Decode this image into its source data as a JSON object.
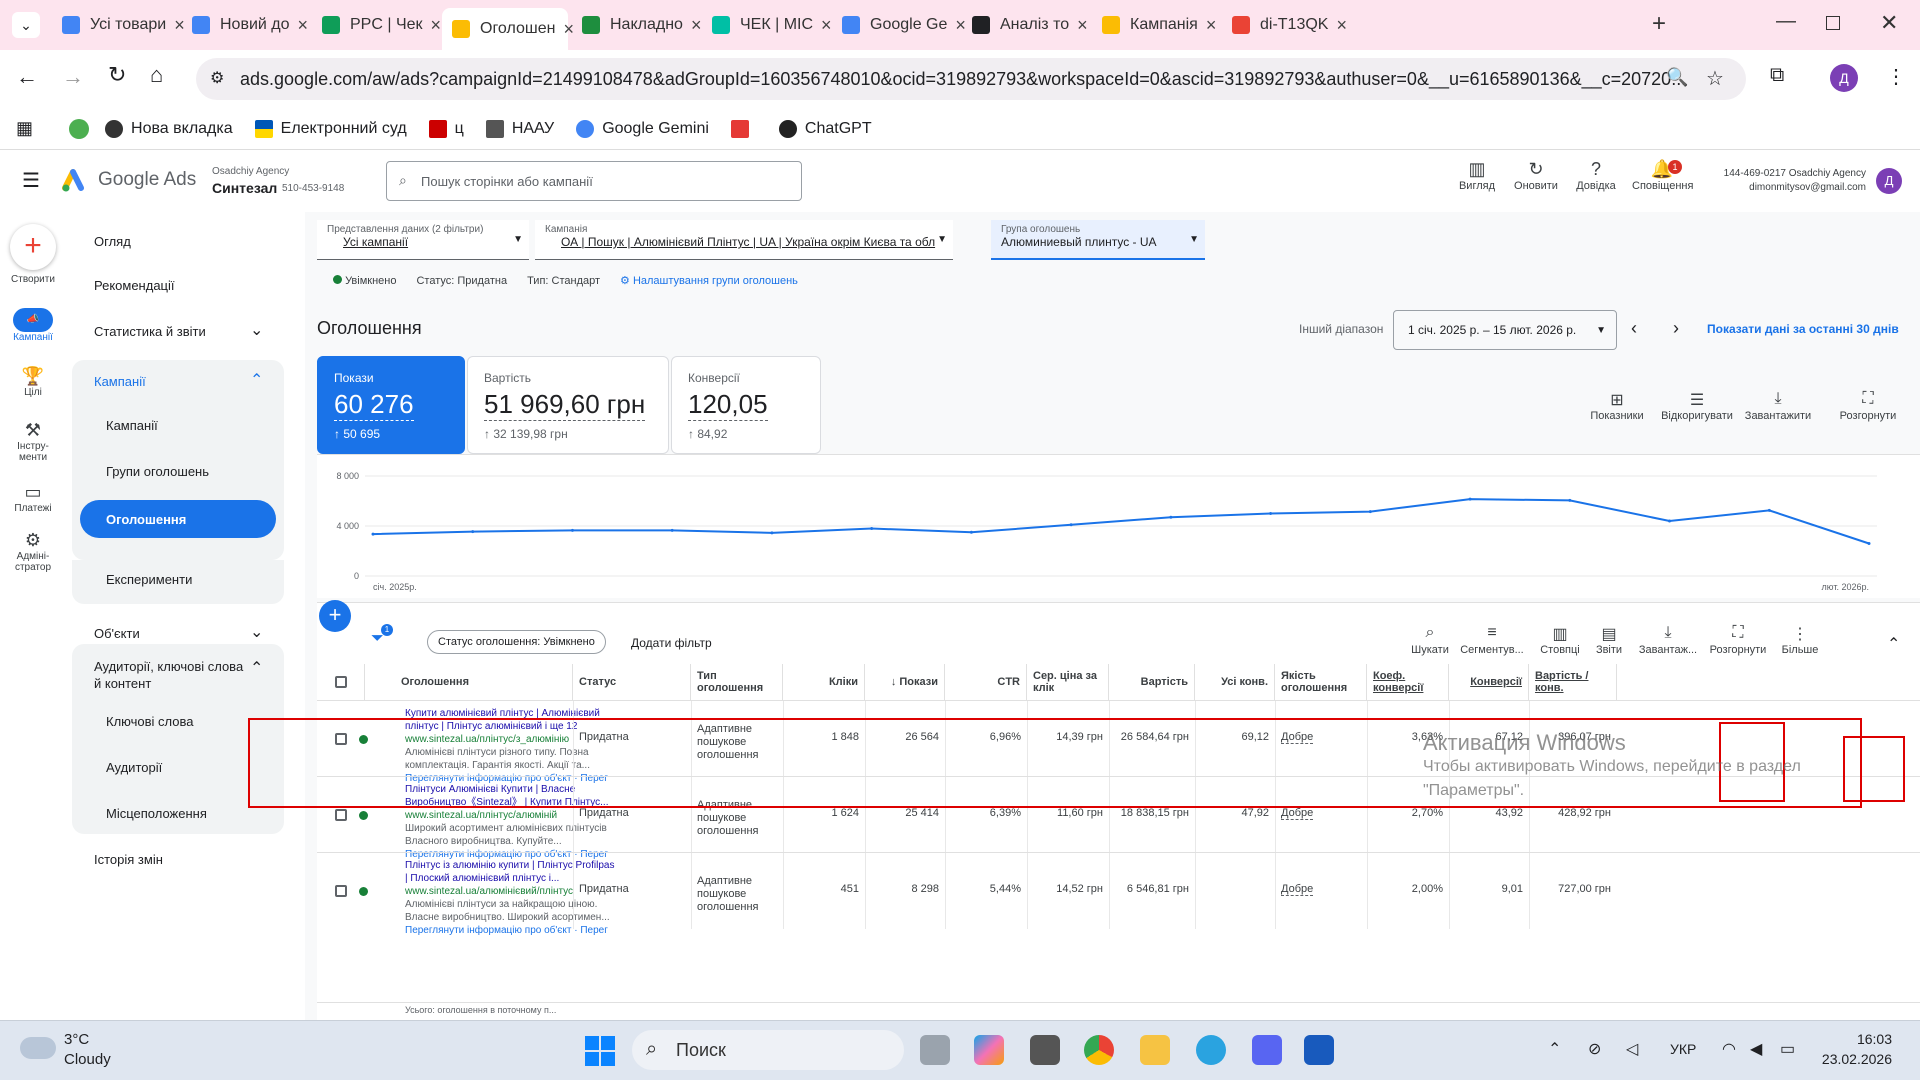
{
  "browser": {
    "tabs": [
      {
        "label": "Усі товари",
        "color": "#4285f4"
      },
      {
        "label": "Новий до",
        "color": "#4285f4"
      },
      {
        "label": "PPC | Чек",
        "color": "#0f9d58"
      },
      {
        "label": "Оголошен",
        "color": "#fbbc04",
        "active": true
      },
      {
        "label": "Накладно",
        "color": "#1e8e3e"
      },
      {
        "label": "ЧЕК | МІС",
        "color": "#00bfa5"
      },
      {
        "label": "Google Ge",
        "color": "#4285f4"
      },
      {
        "label": "Аналіз то",
        "color": "#202124"
      },
      {
        "label": "Кампанія",
        "color": "#fbbc04"
      },
      {
        "label": "di-T13QK",
        "color": "#ea4335"
      }
    ],
    "url": "ads.google.com/aw/ads?campaignId=21499108478&adGroupId=160356748010&ocid=319892793&workspaceId=0&ascid=319892793&authuser=0&__u=6165890136&__c=20720...",
    "profile_initial": "Д",
    "bookmarks": [
      "Нова вкладка",
      "Електронний суд",
      "ц",
      "НААУ",
      "Google Gemini",
      "",
      "ChatGPT"
    ]
  },
  "ads": {
    "product": "Google Ads",
    "account_parent": "Osadchiy Agency",
    "account_name": "Синтезал",
    "account_id": "510-453-9148",
    "search_placeholder": "Пошук сторінки або кампанії",
    "header_buttons": [
      "Вигляд",
      "Оновити",
      "Довідка",
      "Сповіщення"
    ],
    "notif_count": "1",
    "user_account": "144-469-0217 Osadchiy Agency",
    "user_email": "dimonmitysov@gmail.com",
    "user_initial": "Д"
  },
  "rail": [
    "Створити",
    "Кампанії",
    "Цілі",
    "Інстру-менти",
    "Платежі",
    "Адміні-стратор"
  ],
  "nav": {
    "overview": "Огляд",
    "recommendations": "Рекомендації",
    "stats": "Статистика й звіти",
    "campaigns_group": "Кампанії",
    "campaigns": "Кампанії",
    "ad_groups": "Групи оголошень",
    "ads": "Оголошення",
    "experiments": "Експерименти",
    "assets": "Об'єкти",
    "audiences": "Аудиторії, ключові слова й контент",
    "keywords": "Ключові слова",
    "audiences_item": "Аудиторії",
    "locations": "Місцеположення",
    "history": "Історія змін"
  },
  "filters": {
    "view_label": "Представлення даних (2 фільтри)",
    "view_value": "Усі кампанії",
    "campaign_label": "Кампанія",
    "campaign_value": "ОА | Пошук | Алюмінієвий Плінтус | UA | Україна окрім Києва та обл",
    "adgroup_label": "Група оголошень",
    "adgroup_value": "Алюминиевый плинтус - UA",
    "status_enabled": "Увімкнено",
    "status": "Статус: Придатна",
    "type": "Тип: Стандарт",
    "settings_link": "Налаштування групи оголошень"
  },
  "page": {
    "title": "Оголошення",
    "range_label": "Інший діапазон",
    "range_value": "1 січ. 2025 р. – 15 лют. 2026 р.",
    "last30": "Показати дані за останні 30 днів"
  },
  "metrics": [
    {
      "label": "Покази",
      "value": "60 276",
      "delta": "↑ 50 695"
    },
    {
      "label": "Вартість",
      "value": "51 969,60 грн",
      "delta": "↑ 32 139,98 грн"
    },
    {
      "label": "Конверсії",
      "value": "120,05",
      "delta": "↑ 84,92"
    }
  ],
  "chart_tools": [
    "Показники",
    "Відкоригувати",
    "Завантажити",
    "Розгорнути"
  ],
  "chart_data": {
    "type": "line",
    "y_ticks": [
      "8 000",
      "4 000",
      "0"
    ],
    "ylim": [
      0,
      8000
    ],
    "x_start": "січ. 2025р.",
    "x_end": "лют. 2026р.",
    "values": [
      3350,
      3550,
      3650,
      3650,
      3450,
      3800,
      3500,
      4100,
      4700,
      5000,
      5150,
      6150,
      6050,
      4400,
      5250,
      2600
    ],
    "color": "#1a73e8"
  },
  "table_bar": {
    "filter_count": "1",
    "filter_chip": "Статус оголошення: Увімкнено",
    "add_filter": "Додати фільтр",
    "tools": [
      "Шукати",
      "Сегментув...",
      "Стовпці",
      "Звіти",
      "Завантаж...",
      "Розгорнути",
      "Більше"
    ]
  },
  "table": {
    "headers": [
      "Оголошення",
      "Статус",
      "Тип оголошення",
      "Кліки",
      "↓ Покази",
      "CTR",
      "Сер. ціна за клік",
      "Вартість",
      "Усі конв.",
      "Якість оголошення",
      "Коеф. конверсії",
      "Конверсії",
      "Вартість / конв."
    ],
    "rows": [
      {
        "headline": "Купити алюмінієвий плінтус | Алюмінієвий плінтус | Плінтус алюмінієвий і ще 12",
        "url": "www.sintezal.ua/плінтус/з_алюмінію",
        "desc": "Алюмінієві плінтуси різного типу. Повна комплектація. Гарантія якості. Акції та...",
        "link": "Переглянути інформацію про об'єкт · Перег",
        "status": "Придатна",
        "type": "Адаптивне пошукове оголошення",
        "clicks": "1 848",
        "impr": "26 564",
        "ctr": "6,96%",
        "cpc": "14,39 грн",
        "cost": "26 584,64 грн",
        "allconv": "69,12",
        "quality": "Добре",
        "convrate": "3,63%",
        "conv": "67,12",
        "costconv": "396,07 грн"
      },
      {
        "headline": "Плінтуси Алюмінієві Купити | Власне Виробництво《Sintezal》 | Купити Плінтус...",
        "url": "www.sintezal.ua/плінтус/алюміній",
        "desc": "Широкий асортимент алюмінієвих плінтусів Власного виробництва. Купуйте...",
        "link": "Переглянути інформацію про об'єкт · Перег",
        "status": "Придатна",
        "type": "Адаптивне пошукове оголошення",
        "clicks": "1 624",
        "impr": "25 414",
        "ctr": "6,39%",
        "cpc": "11,60 грн",
        "cost": "18 838,15 грн",
        "allconv": "47,92",
        "quality": "Добре",
        "convrate": "2,70%",
        "conv": "43,92",
        "costconv": "428,92 грн"
      },
      {
        "headline": "Плінтус із алюмінію купити | Плінтус Profilpas | Плоский алюмінієвий плінтус і...",
        "url": "www.sintezal.ua/алюмінієвий/плінтус",
        "desc": "Алюмінієві плінтуси за найкращою ціною. Власне виробництво. Широкий асортимен...",
        "link": "Переглянути інформацію про об'єкт · Перег",
        "status": "Придатна",
        "type": "Адаптивне пошукове оголошення",
        "clicks": "451",
        "impr": "8 298",
        "ctr": "5,44%",
        "cpc": "14,52 грн",
        "cost": "6 546,81 грн",
        "allconv": "",
        "quality": "Добре",
        "convrate": "2,00%",
        "conv": "9,01",
        "costconv": "727,00 грн"
      }
    ],
    "total_label": "Усього: оголошення в поточному п..."
  },
  "watermark": {
    "title": "Активация Windows",
    "line1": "Чтобы активировать Windows, перейдите в раздел",
    "line2": "\"Параметры\"."
  },
  "taskbar": {
    "temp": "3°C",
    "weather": "Cloudy",
    "search": "Поиск",
    "lang": "УКР",
    "time": "16:03",
    "date": "23.02.2026"
  }
}
